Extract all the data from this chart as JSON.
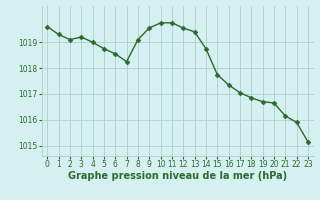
{
  "x": [
    0,
    1,
    2,
    3,
    4,
    5,
    6,
    7,
    8,
    9,
    10,
    11,
    12,
    13,
    14,
    15,
    16,
    17,
    18,
    19,
    20,
    21,
    22,
    23
  ],
  "y": [
    1019.6,
    1019.3,
    1019.1,
    1019.2,
    1019.0,
    1018.75,
    1018.55,
    1018.25,
    1019.1,
    1019.55,
    1019.75,
    1019.75,
    1019.55,
    1019.4,
    1018.75,
    1017.75,
    1017.35,
    1017.05,
    1016.85,
    1016.7,
    1016.65,
    1016.15,
    1015.9,
    1015.15
  ],
  "line_color": "#2d6a2d",
  "marker": "D",
  "marker_size": 2.5,
  "bg_color": "#d4f0f0",
  "grid_color": "#b0cfc8",
  "xlabel": "Graphe pression niveau de la mer (hPa)",
  "xlabel_fontsize": 7,
  "ylim": [
    1014.6,
    1020.4
  ],
  "xlim": [
    -0.5,
    23.5
  ],
  "yticks": [
    1015,
    1016,
    1017,
    1018,
    1019
  ],
  "xticks": [
    0,
    1,
    2,
    3,
    4,
    5,
    6,
    7,
    8,
    9,
    10,
    11,
    12,
    13,
    14,
    15,
    16,
    17,
    18,
    19,
    20,
    21,
    22,
    23
  ],
  "tick_fontsize": 5.5,
  "line_width": 1.0
}
